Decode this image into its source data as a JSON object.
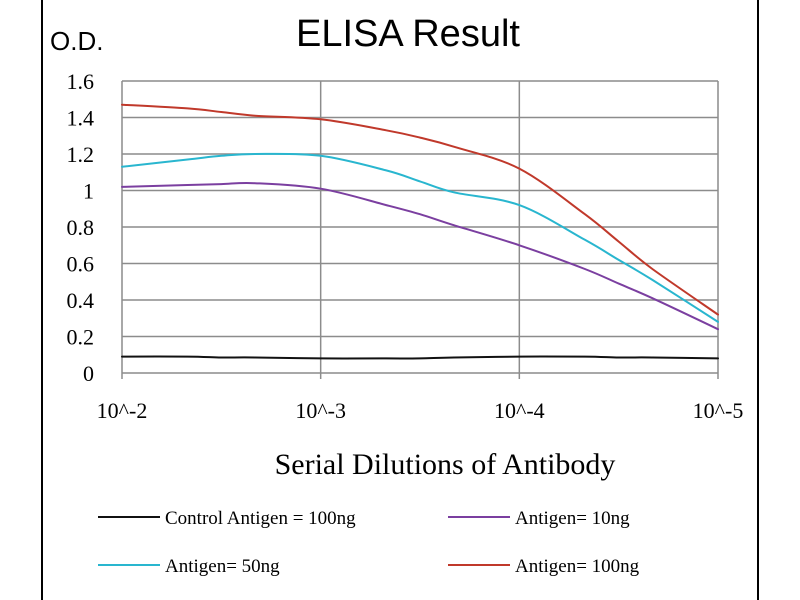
{
  "chart_data": {
    "type": "line",
    "title": "ELISA Result",
    "ylabel": "O.D.",
    "xlabel": "Serial Dilutions of Antibody",
    "categories": [
      "10^-2",
      "10^-3",
      "10^-4",
      "10^-5"
    ],
    "x": [
      0,
      0.33,
      0.5,
      0.67,
      1,
      1.33,
      1.5,
      1.67,
      2,
      2.33,
      2.5,
      2.67,
      3
    ],
    "ylim": [
      0,
      1.6
    ],
    "yticks": [
      "0",
      "0.2",
      "0.4",
      "0.6",
      "0.8",
      "1",
      "1.2",
      "1.4",
      "1.6"
    ],
    "grid": true,
    "legend_position": "bottom",
    "series": [
      {
        "name": "Control Antigen = 100ng",
        "color": "#111111",
        "values": [
          0.09,
          0.09,
          0.085,
          0.085,
          0.08,
          0.08,
          0.08,
          0.085,
          0.09,
          0.09,
          0.085,
          0.085,
          0.08
        ]
      },
      {
        "name": "Antigen= 10ng",
        "color": "#7B3FA0",
        "values": [
          1.02,
          1.03,
          1.035,
          1.04,
          1.01,
          0.92,
          0.87,
          0.81,
          0.7,
          0.57,
          0.49,
          0.41,
          0.24
        ]
      },
      {
        "name": "Antigen= 50ng",
        "color": "#29B6CF",
        "values": [
          1.13,
          1.17,
          1.19,
          1.2,
          1.19,
          1.11,
          1.05,
          0.99,
          0.92,
          0.73,
          0.62,
          0.51,
          0.28
        ]
      },
      {
        "name": "Antigen= 100ng",
        "color": "#C0392B",
        "values": [
          1.47,
          1.45,
          1.43,
          1.41,
          1.39,
          1.33,
          1.29,
          1.24,
          1.12,
          0.87,
          0.72,
          0.57,
          0.32
        ]
      }
    ]
  }
}
